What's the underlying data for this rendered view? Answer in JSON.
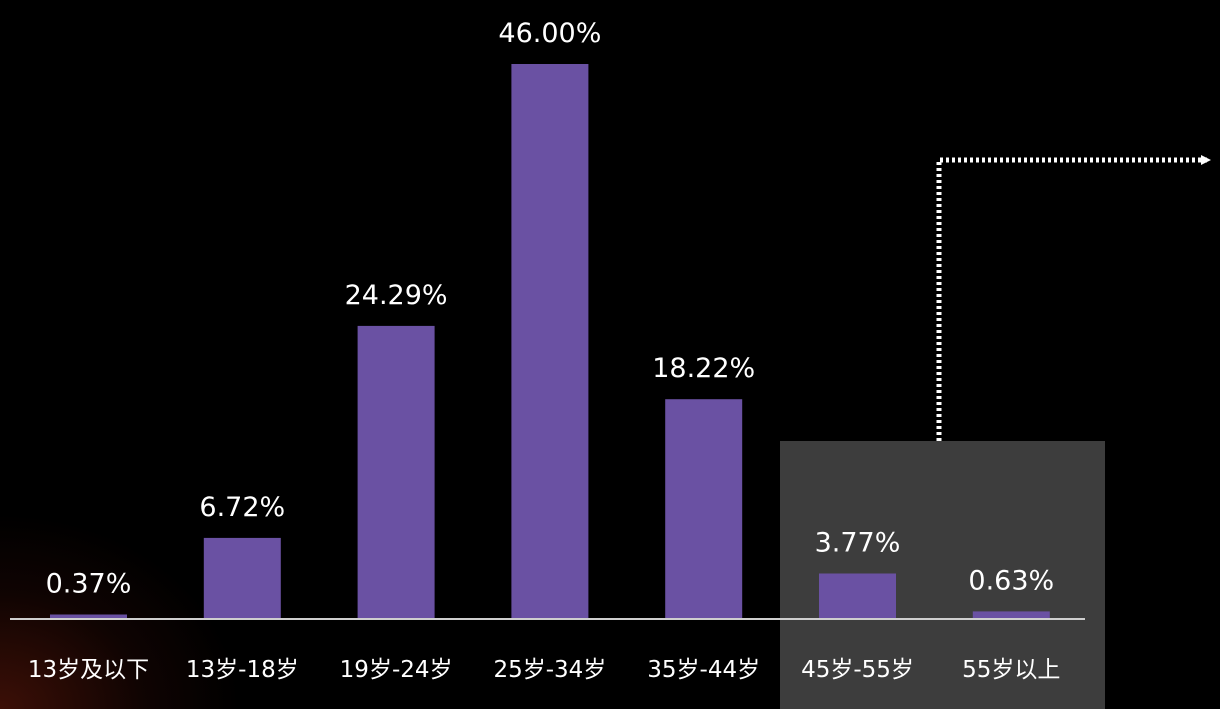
{
  "chart_data": {
    "type": "bar",
    "title": "",
    "xlabel": "",
    "ylabel": "",
    "categories": [
      "13岁及以下",
      "13岁-18岁",
      "19岁-24岁",
      "25岁-34岁",
      "35岁-44岁",
      "45岁-55岁",
      "55岁以上"
    ],
    "values": [
      0.37,
      6.72,
      24.29,
      46.0,
      18.22,
      3.77,
      0.63
    ],
    "value_labels": [
      "0.37%",
      "6.72%",
      "24.29%",
      "46.00%",
      "18.22%",
      "3.77%",
      "0.63%"
    ],
    "ylim": [
      0,
      46.0
    ],
    "grid": false,
    "legend": "none",
    "highlighted_categories": [
      "45岁-55岁",
      "55岁以上"
    ]
  },
  "colors": {
    "background": "#000000",
    "bar": "#6a51a3",
    "highlight_panel": "#3d3d3d",
    "baseline": "#cfcfcf",
    "text": "#ffffff",
    "connector": "#ffffff"
  }
}
